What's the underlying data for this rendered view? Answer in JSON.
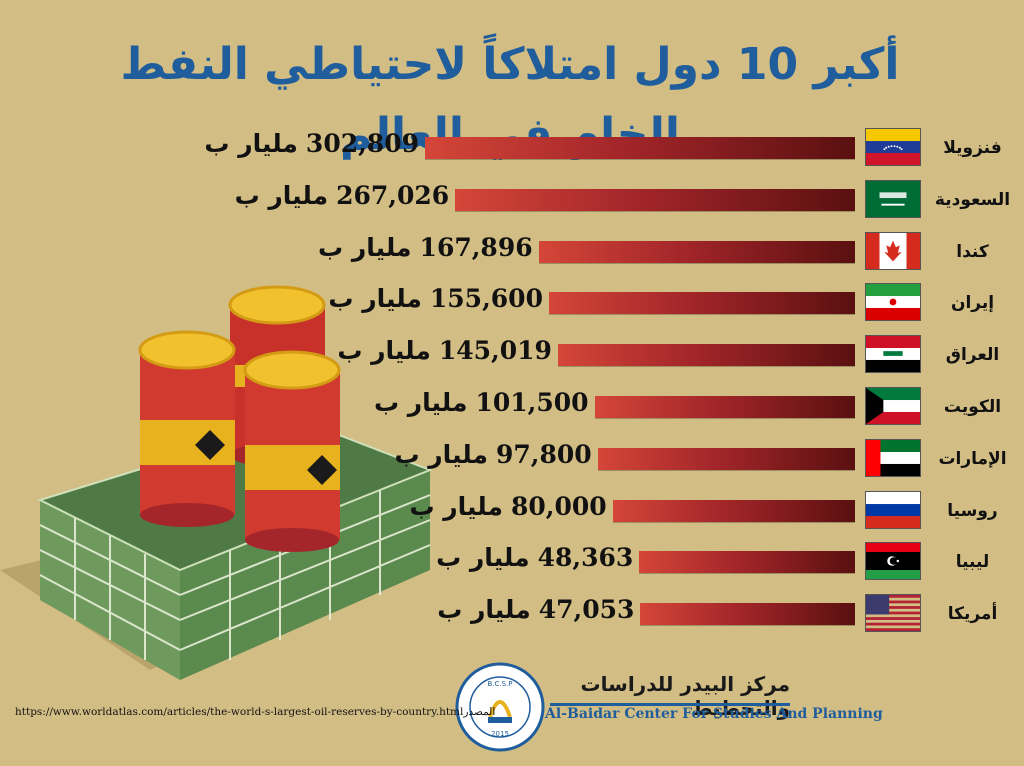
{
  "chart_data": {
    "type": "bar",
    "orientation": "horizontal",
    "title": "أكبر 10 دول امتلاكاً لاحتياطي النفط الخام في العالم",
    "unit": "مليار ب",
    "categories": [
      "فنزويلا",
      "السعودية",
      "كندا",
      "إيران",
      "العراق",
      "الكويت",
      "الإمارات",
      "روسيا",
      "ليبيا",
      "أمريكا"
    ],
    "values": [
      302809,
      267026,
      167896,
      155600,
      145019,
      101500,
      97800,
      80000,
      48363,
      47053
    ],
    "value_labels": [
      "302,809",
      "267,026",
      "167,896",
      "155,600",
      "145,019",
      "101,500",
      "97,800",
      "80,000",
      "48,363",
      "47,053"
    ],
    "bar_color": "#a4262a"
  },
  "title": "أكبر 10 دول امتلاكاً لاحتياطي النفط الخام في العالم",
  "unit_label": "مليار ب",
  "flags": [
    "venezuela-flag-icon",
    "saudi-flag-icon",
    "canada-flag-icon",
    "iran-flag-icon",
    "iraq-flag-icon",
    "kuwait-flag-icon",
    "uae-flag-icon",
    "russia-flag-icon",
    "libya-flag-icon",
    "usa-flag-icon"
  ],
  "source": {
    "url": "https://www.worldatlas.com/articles/the-world-s-largest-oil-reserves-by-country.html",
    "label": "المصدر"
  },
  "org": {
    "name_ar": "مركز البيدر للدراسات والتخطيط",
    "name_en": "Al-Baidar Center For Studies And Planning",
    "logo_text": "B.C.S.P",
    "logo_year": "2015"
  },
  "colors": {
    "title": "#1f5d9c",
    "background": "#d2bd84",
    "bar_dark": "#5a1010",
    "bar_light": "#d44638"
  }
}
